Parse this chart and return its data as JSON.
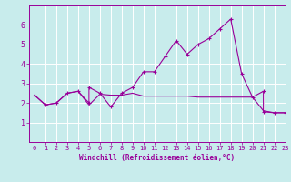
{
  "xlabel": "Windchill (Refroidissement éolien,°C)",
  "xlim": [
    -0.5,
    23
  ],
  "ylim": [
    0,
    7
  ],
  "yticks": [
    1,
    2,
    3,
    4,
    5,
    6
  ],
  "xticks": [
    0,
    1,
    2,
    3,
    4,
    5,
    6,
    7,
    8,
    9,
    10,
    11,
    12,
    13,
    14,
    15,
    16,
    17,
    18,
    19,
    20,
    21,
    22,
    23
  ],
  "bg_color": "#c8ecec",
  "line_color": "#990099",
  "grid_color": "#aadddd",
  "line1_x": [
    0,
    1,
    2,
    3,
    4,
    5,
    5,
    6,
    7,
    8,
    9,
    10,
    11,
    12,
    13,
    14,
    15,
    16,
    17,
    18,
    19,
    20,
    21,
    21,
    22,
    23
  ],
  "line1_y": [
    2.4,
    1.9,
    2.0,
    2.5,
    2.6,
    2.0,
    2.8,
    2.5,
    1.8,
    2.5,
    2.8,
    3.6,
    3.6,
    4.4,
    5.2,
    4.5,
    5.0,
    5.3,
    5.8,
    6.3,
    3.5,
    2.3,
    2.6,
    1.55,
    1.5,
    1.5
  ],
  "line2_x": [
    0,
    1,
    2,
    3,
    4,
    5,
    6,
    7,
    8,
    9,
    10,
    11,
    12,
    13,
    14,
    15,
    16,
    17,
    18,
    19,
    20,
    21,
    22,
    23
  ],
  "line2_y": [
    2.4,
    1.9,
    2.0,
    2.5,
    2.6,
    1.9,
    2.45,
    2.4,
    2.4,
    2.5,
    2.35,
    2.35,
    2.35,
    2.35,
    2.35,
    2.3,
    2.3,
    2.3,
    2.3,
    2.3,
    2.3,
    1.6,
    1.5,
    1.5
  ]
}
